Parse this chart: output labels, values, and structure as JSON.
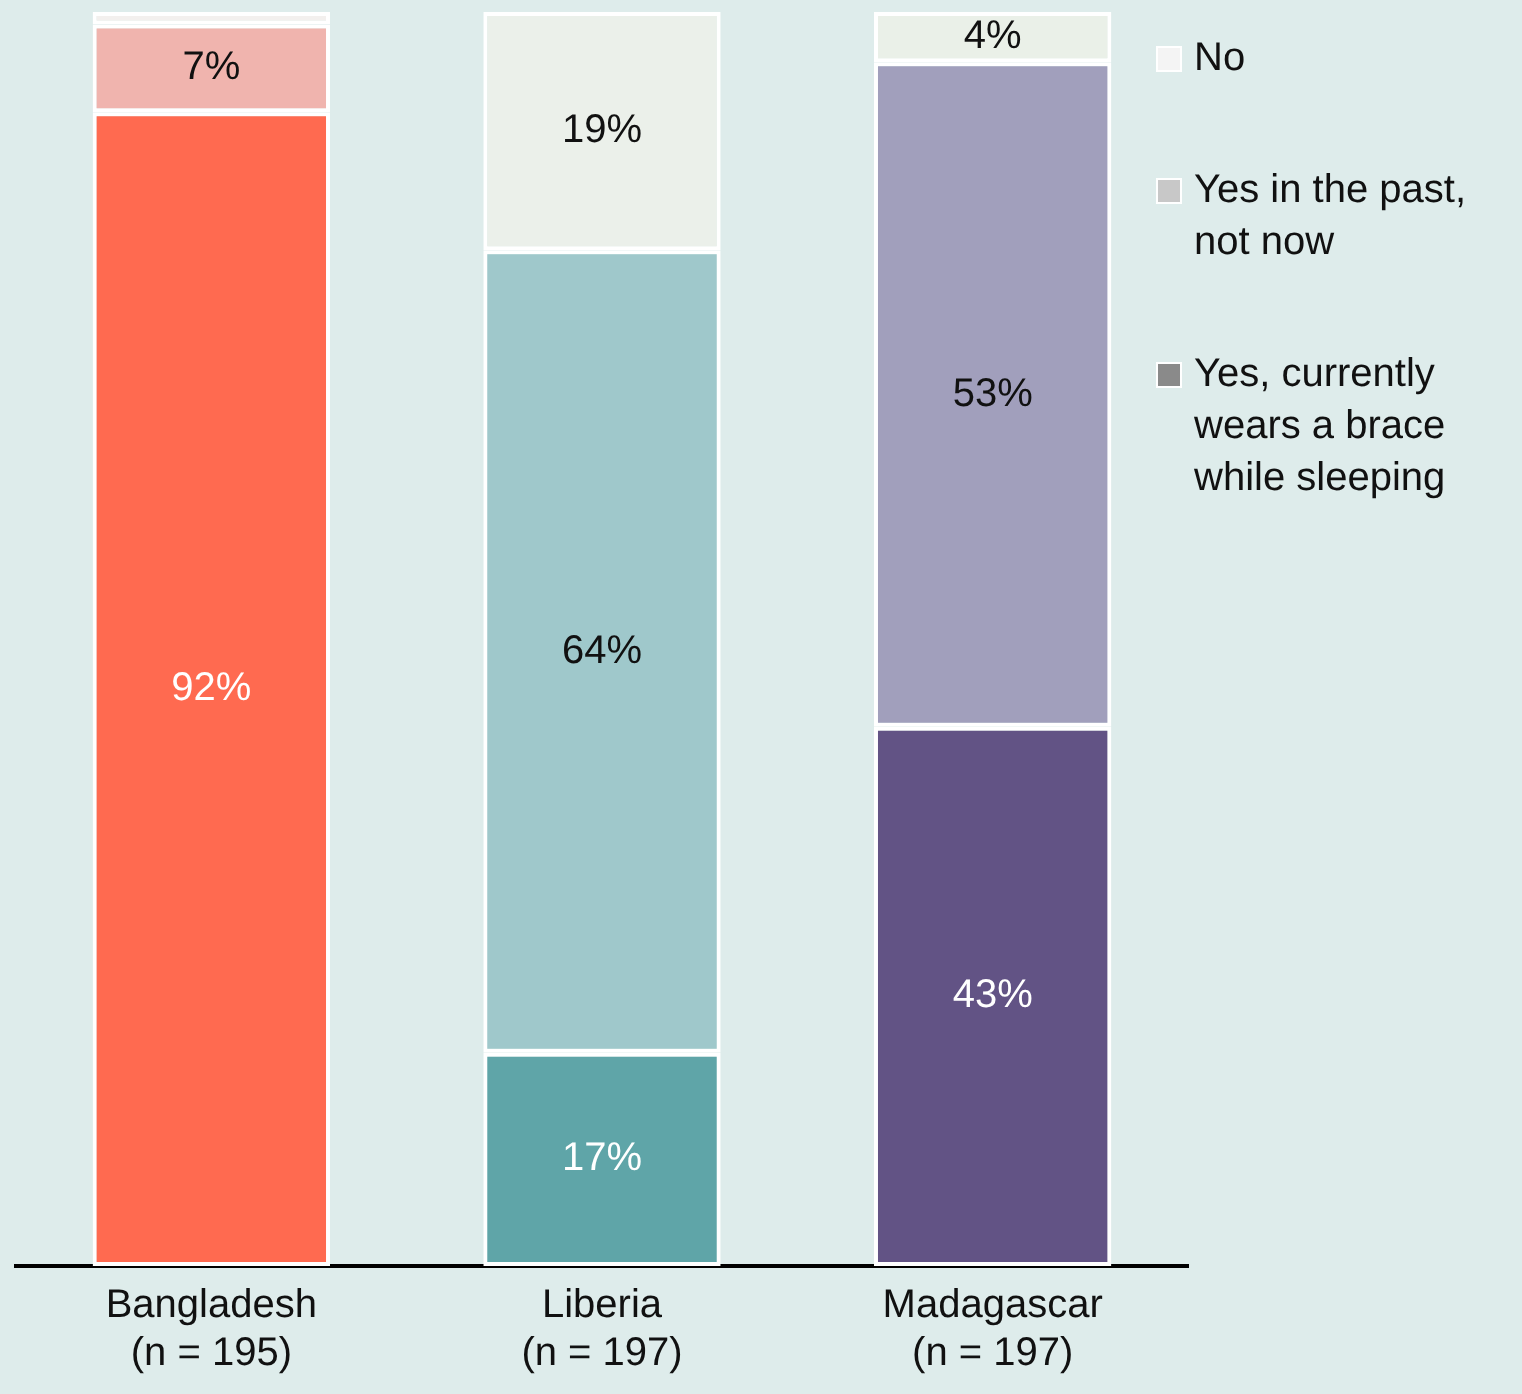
{
  "chart_data": {
    "type": "bar",
    "stacked": true,
    "categories": [
      "Bangladesh\n(n = 195)",
      "Liberia\n(n = 197)",
      "Madagascar\n(n = 197)"
    ],
    "ylim": [
      0,
      100
    ],
    "tick_labels": "x",
    "grid": false,
    "legend": "right",
    "series": [
      {
        "name": "Yes, currently wears a brace while sleeping",
        "color": "#8a8a8a",
        "colors": [
          "#ff6a50",
          "#5fa5a8",
          "#625385"
        ],
        "values": [
          92,
          17,
          43
        ],
        "value_labels": [
          "92%",
          "17%",
          "43%"
        ]
      },
      {
        "name": "Yes in the past, not now",
        "color": "#c8c8c8",
        "colors": [
          "#f0b4ae",
          "#9fc8cb",
          "#a19fbc"
        ],
        "values": [
          7,
          64,
          53
        ],
        "value_labels": [
          "7%",
          "64%",
          "53%"
        ]
      },
      {
        "name": "No",
        "color": "#f4f4f4",
        "colors": [
          "#f3f0ee",
          "#ebf0ea",
          "#eaf0e8"
        ],
        "values": [
          1,
          19,
          4
        ],
        "value_labels": [
          null,
          "19%",
          "4%"
        ]
      }
    ]
  }
}
